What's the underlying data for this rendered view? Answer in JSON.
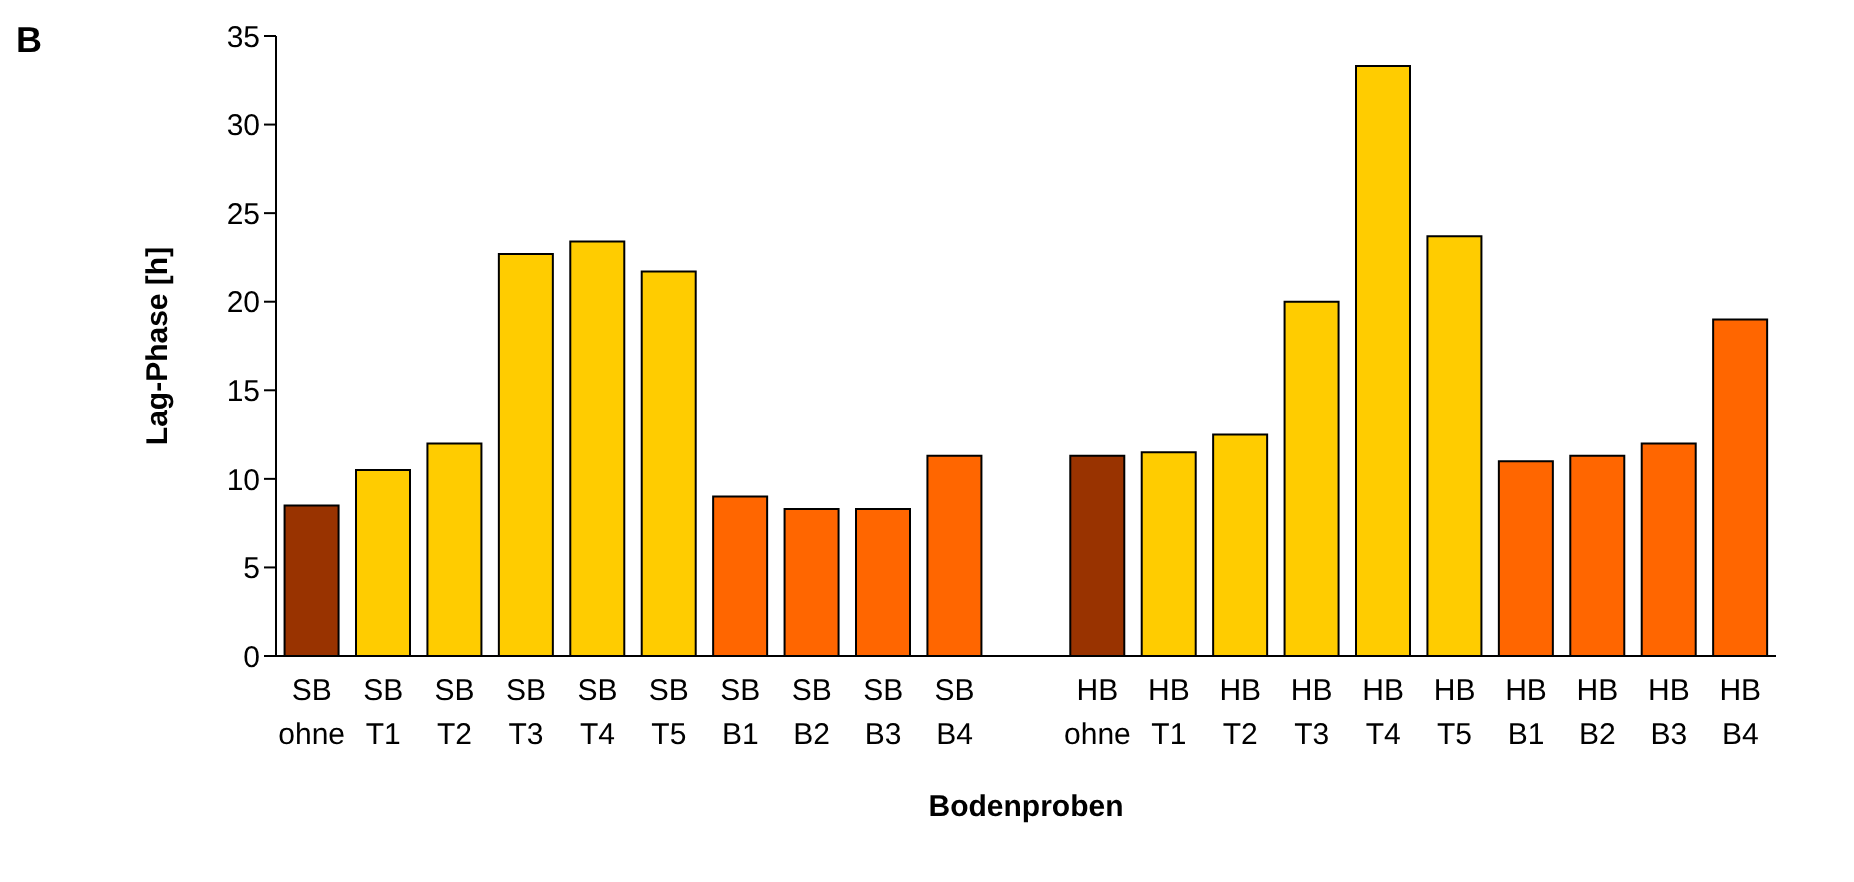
{
  "chart_data": {
    "type": "bar",
    "xlabel": "Bodenproben",
    "ylabel": "Lag-Phase [h]",
    "annotations": [
      "B"
    ],
    "categories": [
      "SB ohne",
      "SB T1",
      "SB T2",
      "SB T3",
      "SB T4",
      "SB T5",
      "SB B1",
      "SB B2",
      "SB B3",
      "SB B4",
      null,
      "HB ohne",
      "HB T1",
      "HB T2",
      "HB T3",
      "HB T4",
      "HB T5",
      "HB B1",
      "HB B2",
      "HB B3",
      "HB B4"
    ],
    "values": [
      8.5,
      10.5,
      12,
      22.7,
      23.4,
      21.7,
      9,
      8.3,
      8.3,
      11.3,
      null,
      11.3,
      11.5,
      12.5,
      20,
      33.3,
      23.7,
      11,
      11.3,
      12,
      19
    ],
    "colors": [
      "#993300",
      "#ffcc00",
      "#ffcc00",
      "#ffcc00",
      "#ffcc00",
      "#ffcc00",
      "#ff6600",
      "#ff6600",
      "#ff6600",
      "#ff6600",
      "#ffffff",
      "#993300",
      "#ffcc00",
      "#ffcc00",
      "#ffcc00",
      "#ffcc00",
      "#ffcc00",
      "#ff6600",
      "#ff6600",
      "#ff6600",
      "#ff6600"
    ],
    "ylim": [
      0,
      35
    ],
    "yticks": [
      0,
      5,
      10,
      15,
      20,
      25,
      30,
      35
    ],
    "grid": false,
    "legend": false
  }
}
